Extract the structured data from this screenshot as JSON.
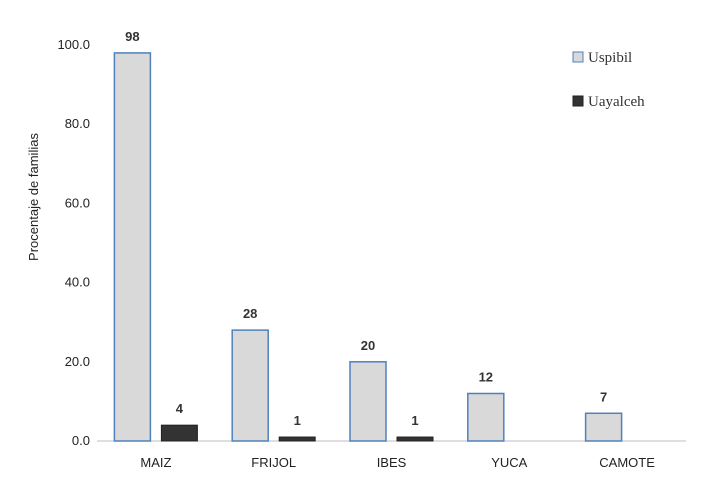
{
  "chart_data": {
    "type": "bar",
    "categories": [
      "MAIZ",
      "FRIJOL",
      "IBES",
      "YUCA",
      "CAMOTE"
    ],
    "series": [
      {
        "name": "Uspibil",
        "values": [
          98,
          28,
          20,
          12,
          7
        ],
        "labels": [
          "98",
          "28",
          "20",
          "12",
          "7"
        ],
        "color": "#d9d9d9",
        "stroke": "#4f81bd"
      },
      {
        "name": "Uayalceh",
        "values": [
          4,
          1,
          1,
          null,
          null
        ],
        "labels": [
          "4",
          "1",
          "1",
          "",
          ""
        ],
        "color": "#333333",
        "stroke": "#222222"
      }
    ],
    "ylabel": "Procentaje de familias",
    "ylim": [
      0,
      100
    ],
    "yticks": [
      0,
      20,
      40,
      60,
      80,
      100
    ],
    "ytick_labels": [
      "0.0",
      "20.0",
      "40.0",
      "60.0",
      "80.0",
      "100.0"
    ],
    "legend_position": "top-right",
    "grid": false
  }
}
